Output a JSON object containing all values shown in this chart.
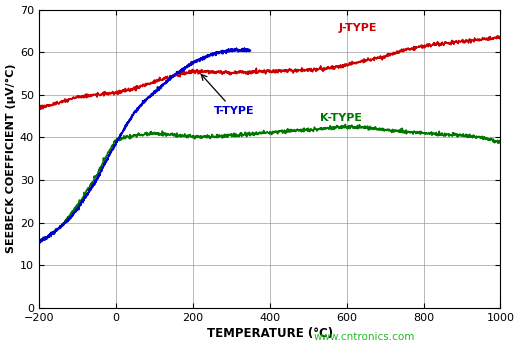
{
  "xlabel": "TEMPERATURE (°C)",
  "ylabel": "SEEBECK COEFFICIENT (μV/°C)",
  "xlim": [
    -200,
    1000
  ],
  "ylim": [
    0,
    70
  ],
  "xticks": [
    -200,
    0,
    200,
    400,
    600,
    800,
    1000
  ],
  "yticks": [
    0,
    10,
    20,
    30,
    40,
    50,
    60,
    70
  ],
  "watermark": "www.cntronics.com",
  "watermark_color": "#22bb22",
  "bg_color": "#ffffff",
  "grid_color": "#999999",
  "j_color": "#cc0000",
  "t_color": "#0000cc",
  "k_color": "#007700",
  "j_label": "J-TYPE",
  "t_label": "T-TYPE",
  "k_label": "K-TYPE",
  "j_points": [
    [
      -200,
      47.0
    ],
    [
      -150,
      48.0
    ],
    [
      -100,
      49.5
    ],
    [
      -50,
      50.0
    ],
    [
      0,
      50.4
    ],
    [
      50,
      51.5
    ],
    [
      100,
      53.0
    ],
    [
      150,
      54.5
    ],
    [
      200,
      55.5
    ],
    [
      250,
      55.3
    ],
    [
      300,
      55.2
    ],
    [
      350,
      55.3
    ],
    [
      400,
      55.5
    ],
    [
      450,
      55.7
    ],
    [
      500,
      55.8
    ],
    [
      550,
      56.2
    ],
    [
      600,
      57.0
    ],
    [
      650,
      58.0
    ],
    [
      700,
      59.0
    ],
    [
      750,
      60.5
    ],
    [
      800,
      61.5
    ],
    [
      850,
      62.0
    ],
    [
      900,
      62.5
    ],
    [
      950,
      63.0
    ],
    [
      1000,
      63.5
    ]
  ],
  "t_points": [
    [
      -200,
      15.5
    ],
    [
      -175,
      16.8
    ],
    [
      -150,
      18.5
    ],
    [
      -125,
      20.5
    ],
    [
      -100,
      23.0
    ],
    [
      -75,
      26.5
    ],
    [
      -50,
      30.0
    ],
    [
      -25,
      34.5
    ],
    [
      0,
      38.5
    ],
    [
      25,
      42.5
    ],
    [
      50,
      46.0
    ],
    [
      75,
      48.5
    ],
    [
      100,
      50.5
    ],
    [
      125,
      52.5
    ],
    [
      150,
      54.5
    ],
    [
      175,
      56.0
    ],
    [
      200,
      57.5
    ],
    [
      225,
      58.5
    ],
    [
      250,
      59.5
    ],
    [
      275,
      60.0
    ],
    [
      300,
      60.5
    ],
    [
      325,
      60.5
    ],
    [
      350,
      60.5
    ]
  ],
  "k_points": [
    [
      -200,
      15.5
    ],
    [
      -175,
      16.8
    ],
    [
      -150,
      18.5
    ],
    [
      -125,
      21.0
    ],
    [
      -100,
      24.0
    ],
    [
      -75,
      27.5
    ],
    [
      -50,
      31.0
    ],
    [
      -25,
      35.5
    ],
    [
      0,
      39.4
    ],
    [
      25,
      40.0
    ],
    [
      50,
      40.5
    ],
    [
      75,
      40.8
    ],
    [
      100,
      41.0
    ],
    [
      150,
      40.5
    ],
    [
      200,
      40.1
    ],
    [
      250,
      40.2
    ],
    [
      300,
      40.5
    ],
    [
      350,
      40.8
    ],
    [
      400,
      41.2
    ],
    [
      450,
      41.5
    ],
    [
      500,
      41.8
    ],
    [
      550,
      42.2
    ],
    [
      600,
      42.5
    ],
    [
      650,
      42.3
    ],
    [
      700,
      41.8
    ],
    [
      750,
      41.4
    ],
    [
      800,
      41.0
    ],
    [
      850,
      40.7
    ],
    [
      900,
      40.5
    ],
    [
      950,
      40.0
    ],
    [
      1000,
      39.0
    ]
  ]
}
